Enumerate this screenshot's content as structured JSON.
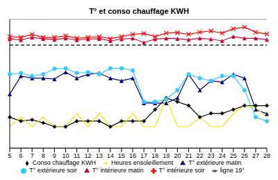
{
  "chart_data": {
    "type": "line",
    "title": "T° et conso chauffage KWH",
    "categories": [
      "5",
      "6",
      "7",
      "8",
      "9",
      "10",
      "11",
      "12",
      "13",
      "14",
      "15",
      "16",
      "17",
      "18",
      "19",
      "20",
      "21",
      "22",
      "23",
      "24",
      "25",
      "26",
      "27",
      "28"
    ],
    "ylim": [
      -5,
      25
    ],
    "yticks": [
      -5,
      0,
      5,
      10,
      15,
      20,
      25
    ],
    "grid": true,
    "legend": "bottom",
    "tick_labels": "x",
    "series": [
      {
        "name": "Conso chauffage KWH",
        "color": "#000000",
        "marker": "diamond",
        "line_style": "solid",
        "values": [
          2.2,
          1.3,
          1.6,
          0.9,
          0,
          0,
          1.3,
          1.3,
          1.3,
          0,
          1.3,
          1.3,
          1.3,
          4.0,
          6.7,
          5.8,
          4.9,
          2.2,
          3.1,
          3.1,
          4.0,
          4.9,
          4.9,
          4.9
        ]
      },
      {
        "name": "T° intérieure matin",
        "color": "#cc0033",
        "marker": "triangle",
        "line_style": "solid",
        "values": [
          20.5,
          20.2,
          20.8,
          20.5,
          20.3,
          20.6,
          20.2,
          20.4,
          20.5,
          20.0,
          20.4,
          20.6,
          19.6,
          20.4,
          20.6,
          20.5,
          20.3,
          20.6,
          20.4,
          20.0,
          21.0,
          20.6,
          20.6,
          20.3
        ]
      },
      {
        "name": "T° intérieure soir",
        "color": "#ff0000",
        "marker": "cross",
        "line_style": "solid",
        "values": [
          21.0,
          20.8,
          21.5,
          20.8,
          20.8,
          21.2,
          20.6,
          20.8,
          21.0,
          20.5,
          21.0,
          21.5,
          21.7,
          21.0,
          21.8,
          21.9,
          21.5,
          22.0,
          22.3,
          21.8,
          22.8,
          23.2,
          22.0,
          21.6
        ]
      },
      {
        "name": "T° extérieure matin",
        "color": "#000080",
        "marker": "triangle",
        "line_style": "solid",
        "values": [
          7.6,
          11.8,
          11.3,
          11.3,
          11.1,
          12.7,
          11.3,
          12.2,
          12.5,
          11.3,
          10.7,
          11.3,
          5.5,
          5.5,
          5.5,
          6.7,
          12.2,
          8.5,
          10.7,
          10.4,
          12.2,
          11.3,
          4.0,
          3.0
        ]
      },
      {
        "name": "T° extérieure soir",
        "color": "#33ccff",
        "marker": "circle",
        "line_style": "solid",
        "values": [
          12.2,
          12.5,
          11.8,
          12.2,
          13.5,
          13.6,
          12.5,
          12.7,
          12.2,
          13.6,
          13.6,
          13.1,
          5.8,
          5.8,
          6.4,
          8.5,
          12.2,
          11.3,
          10.7,
          11.8,
          11.8,
          8.5,
          2.2,
          1.3
        ]
      },
      {
        "name": "Heures ensoleillement",
        "color": "#f2e600",
        "marker": "none",
        "line_style": "solid",
        "values": [
          0,
          2.2,
          0,
          2.2,
          0,
          0,
          3.1,
          0,
          3.1,
          0,
          0,
          3.1,
          0,
          0,
          6.7,
          0,
          0,
          2.2,
          0,
          0,
          3.1,
          4.9,
          4.5,
          2.2
        ]
      },
      {
        "name": "ligne 19°",
        "color": "#000000",
        "marker": "none",
        "line_style": "dashed",
        "values": [
          19,
          19,
          19,
          19,
          19,
          19,
          19,
          19,
          19,
          19,
          19,
          19,
          19,
          19,
          19,
          19,
          19,
          19,
          19,
          19,
          19,
          19,
          19,
          19
        ]
      }
    ]
  }
}
